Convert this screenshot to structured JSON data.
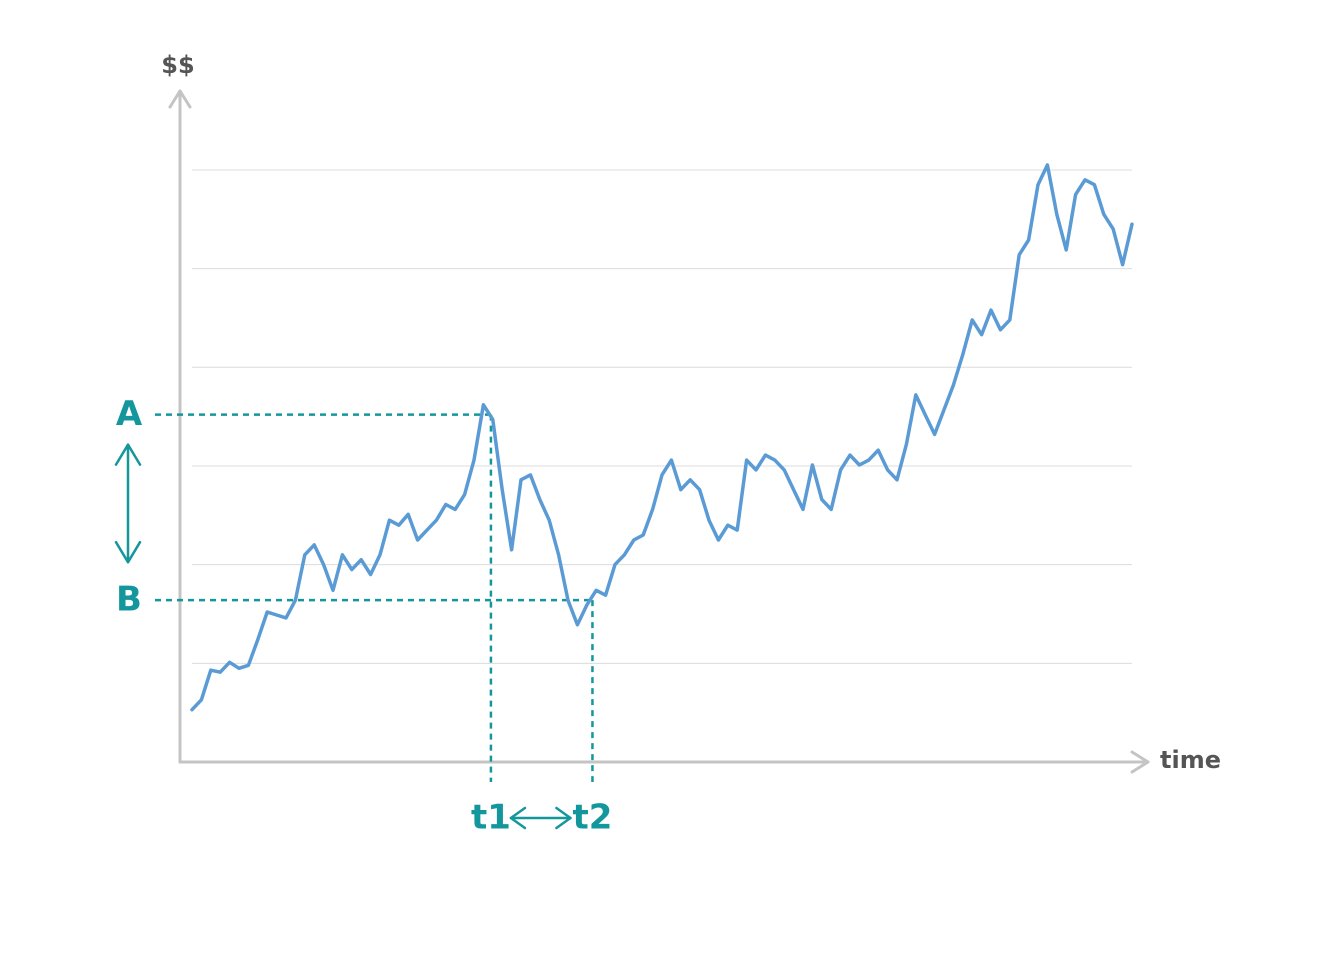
{
  "chart_data": {
    "type": "line",
    "y_label": "$$",
    "x_label": "time",
    "color": "#5b9bd5",
    "annotation_color": "#14979c",
    "xlim": [
      0,
      100
    ],
    "ylim": [
      0,
      6.8
    ],
    "gridlines": [
      1,
      2,
      3,
      4,
      5,
      6
    ],
    "values": [
      0.53,
      0.63,
      0.93,
      0.91,
      1.01,
      0.95,
      0.98,
      1.24,
      1.52,
      1.49,
      1.46,
      1.64,
      2.1,
      2.2,
      2.0,
      1.74,
      2.1,
      1.95,
      2.05,
      1.9,
      2.1,
      2.45,
      2.4,
      2.51,
      2.25,
      2.35,
      2.45,
      2.61,
      2.56,
      2.71,
      3.06,
      3.62,
      3.47,
      2.76,
      2.15,
      2.86,
      2.91,
      2.66,
      2.45,
      2.1,
      1.64,
      1.39,
      1.59,
      1.74,
      1.69,
      2.0,
      2.1,
      2.25,
      2.3,
      2.56,
      2.91,
      3.06,
      2.76,
      2.86,
      2.76,
      2.45,
      2.25,
      2.4,
      2.35,
      3.06,
      2.96,
      3.11,
      3.06,
      2.96,
      2.76,
      2.56,
      3.01,
      2.66,
      2.56,
      2.96,
      3.11,
      3.01,
      3.06,
      3.16,
      2.96,
      2.86,
      3.22,
      3.72,
      3.52,
      3.32,
      3.57,
      3.82,
      4.13,
      4.48,
      4.33,
      4.58,
      4.38,
      4.48,
      5.14,
      5.29,
      5.85,
      6.05,
      5.55,
      5.19,
      5.75,
      5.9,
      5.85,
      5.55,
      5.4,
      5.04,
      5.45
    ],
    "annotations": [
      {
        "label": "A",
        "y": 3.52
      },
      {
        "label": "B",
        "y": 1.64
      },
      {
        "label": "t1",
        "x": 31.8
      },
      {
        "label": "t2",
        "x": 42.6
      }
    ]
  }
}
